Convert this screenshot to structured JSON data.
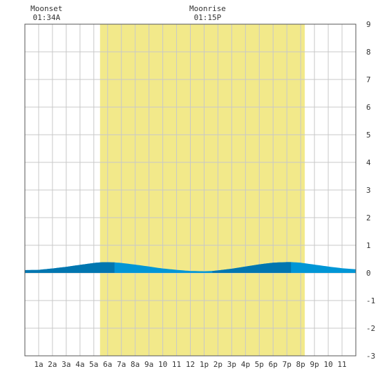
{
  "chart_data": {
    "type": "area",
    "title": "",
    "xlabel": "",
    "ylabel": "",
    "x_range_hours": [
      0,
      24
    ],
    "ylim": [
      -3,
      9
    ],
    "y_ticks": [
      "-3",
      "-2",
      "-1",
      "0",
      "1",
      "2",
      "3",
      "4",
      "5",
      "6",
      "7",
      "8",
      "9"
    ],
    "x_tick_labels": [
      "1a",
      "2a",
      "3a",
      "4a",
      "5a",
      "6a",
      "7a",
      "8a",
      "9a",
      "10",
      "11",
      "12",
      "1p",
      "2p",
      "3p",
      "4p",
      "5p",
      "6p",
      "7p",
      "8p",
      "9p",
      "10",
      "11"
    ],
    "grid": true,
    "daylight": {
      "start_hour": 5.45,
      "end_hour": 20.3,
      "color": "#f2e98a"
    },
    "annotations": [
      {
        "label": "Moonset",
        "time": "01:34A",
        "hour": 1.57
      },
      {
        "label": "Moonrise",
        "time": "01:15P",
        "hour": 13.25
      }
    ],
    "series": [
      {
        "values_hours": [
          0,
          1,
          2,
          3,
          4,
          5,
          5.7,
          6.5,
          7,
          8,
          9,
          10,
          11,
          12,
          13,
          13.6,
          14,
          15,
          16,
          17,
          18,
          19,
          19.3,
          20,
          21,
          22,
          23,
          24
        ],
        "values_ft": [
          0.1,
          0.11,
          0.16,
          0.22,
          0.29,
          0.36,
          0.39,
          0.38,
          0.36,
          0.3,
          0.23,
          0.16,
          0.11,
          0.07,
          0.06,
          0.07,
          0.09,
          0.15,
          0.23,
          0.31,
          0.37,
          0.39,
          0.39,
          0.37,
          0.3,
          0.23,
          0.17,
          0.13
        ]
      }
    ],
    "colors": {
      "tide": "#0096d6",
      "tide_dark": "#0076b0",
      "grid": "#c8c8c8"
    }
  }
}
